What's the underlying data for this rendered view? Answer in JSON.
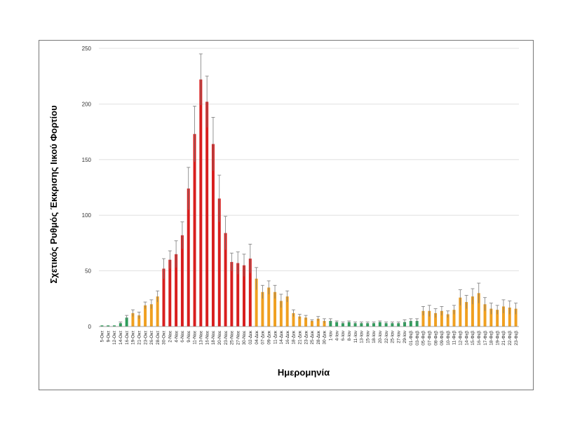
{
  "chart_data": {
    "type": "bar",
    "title": "",
    "xlabel": "Ημερομηνία",
    "ylabel": "Σχετικός Ρυθμός Έκκρισης Ιικού Φορτίου",
    "ylim": [
      0,
      250
    ],
    "yticks": [
      0,
      50,
      100,
      150,
      200,
      250
    ],
    "grid": true,
    "error_bars": true,
    "level_colors": {
      "low": "#2e9e5b",
      "medium": "#f0a020",
      "high": "#d81e1e"
    },
    "categories": [
      "5-Οκτ",
      "9-Οκτ",
      "12-Οκτ",
      "14-Οκτ",
      "16-Οκτ",
      "19-Οκτ",
      "21-Οκτ",
      "23-Οκτ",
      "26-Οκτ",
      "28-Οκτ",
      "30-Οκτ",
      "2-Νοε",
      "4-Νοε",
      "6-Νοε",
      "9-Νοε",
      "11-Νοε",
      "13-Νοε",
      "16-Νοε",
      "18-Νοε",
      "20-Νοε",
      "23-Νοε",
      "25-Νοε",
      "27-Νοε",
      "30-Νοε",
      "02-Δεκ",
      "04-Δεκ",
      "07-Δεκ",
      "09-Δεκ",
      "11-Δεκ",
      "14-Δεκ",
      "16-Δεκ",
      "18-Δεκ",
      "21-Δεκ",
      "23-Δεκ",
      "25-Δεκ",
      "28-Δεκ",
      "30-Δεκ",
      "1-Ιαν",
      "4-Ιαν",
      "6-Ιαν",
      "8-Ιαν",
      "11-Ιαν",
      "13-Ιαν",
      "15-Ιαν",
      "18-Ιαν",
      "20-Ιαν",
      "22-Ιαν",
      "25-Ιαν",
      "27-Ιαν",
      "29-Ιαν",
      "01-Φεβ",
      "03-Φεβ",
      "05-Φεβ",
      "07-Φεβ",
      "08-Φεβ",
      "09-Φεβ",
      "10-Φεβ",
      "11-Φεβ",
      "12-Φεβ",
      "14-Φεβ",
      "15-Φεβ",
      "16-Φεβ",
      "17-Φεβ",
      "18-Φεβ",
      "19-Φεβ",
      "21-Φεβ",
      "22-Φεβ",
      "23-Φεβ"
    ],
    "values": [
      1,
      1,
      1,
      3,
      8,
      12,
      10,
      19,
      20,
      27,
      52,
      60,
      65,
      82,
      124,
      173,
      222,
      202,
      164,
      115,
      84,
      58,
      57,
      55,
      61,
      43,
      31,
      35,
      31,
      23,
      27,
      12,
      9,
      8,
      5,
      7,
      5,
      5,
      4,
      3,
      4,
      3,
      3,
      3,
      3,
      4,
      3,
      3,
      3,
      4,
      5,
      5,
      14,
      14,
      12,
      14,
      11,
      15,
      26,
      22,
      27,
      30,
      20,
      16,
      15,
      18,
      17,
      16
    ],
    "errors": [
      0,
      0,
      0,
      1,
      2,
      3,
      3,
      3,
      4,
      5,
      9,
      8,
      12,
      12,
      19,
      25,
      23,
      23,
      24,
      21,
      15,
      8,
      10,
      10,
      13,
      10,
      6,
      6,
      6,
      6,
      5,
      3,
      2,
      2,
      1,
      2,
      2,
      2,
      1,
      1,
      1,
      1,
      1,
      1,
      1,
      1,
      1,
      1,
      1,
      2,
      2,
      2,
      4,
      5,
      4,
      4,
      3,
      4,
      7,
      6,
      7,
      9,
      6,
      5,
      4,
      6,
      6,
      5
    ],
    "levels": [
      "low",
      "low",
      "low",
      "low",
      "low",
      "medium",
      "medium",
      "medium",
      "medium",
      "medium",
      "high",
      "high",
      "high",
      "high",
      "high",
      "high",
      "high",
      "high",
      "high",
      "high",
      "high",
      "high",
      "high",
      "high",
      "high",
      "medium",
      "medium",
      "medium",
      "medium",
      "medium",
      "medium",
      "medium",
      "medium",
      "medium",
      "medium",
      "medium",
      "medium",
      "low",
      "low",
      "low",
      "low",
      "low",
      "low",
      "low",
      "low",
      "low",
      "low",
      "low",
      "low",
      "low",
      "low",
      "low",
      "medium",
      "medium",
      "medium",
      "medium",
      "medium",
      "medium",
      "medium",
      "medium",
      "medium",
      "medium",
      "medium",
      "medium",
      "medium",
      "medium",
      "medium",
      "medium"
    ]
  }
}
